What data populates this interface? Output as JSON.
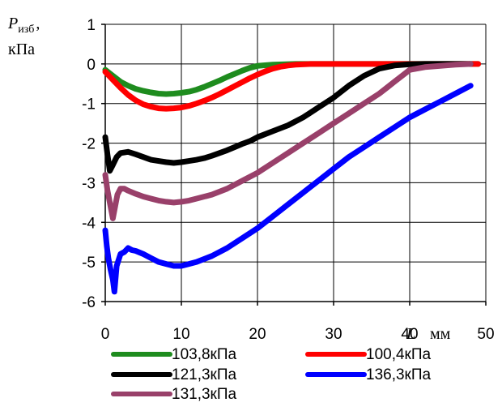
{
  "chart_data": {
    "type": "line",
    "ylabel": {
      "symbol": "P",
      "subscript": "изб",
      "suffix": ",",
      "unit": "кПа"
    },
    "xlabel": {
      "symbol": "L",
      "unit": "мм"
    },
    "xlim": [
      0,
      50
    ],
    "ylim": [
      -6,
      1
    ],
    "xticks": [
      "0",
      "10",
      "20",
      "30",
      "40",
      "50"
    ],
    "yticks": [
      "1",
      "0",
      "-1",
      "-2",
      "-3",
      "-4",
      "-5",
      "-6"
    ],
    "grid": true,
    "legend_position": "bottom",
    "series": [
      {
        "name": "103,8кПа",
        "color": "#1e8c1e",
        "x": [
          0,
          1,
          2,
          3,
          4,
          5,
          6,
          7,
          8,
          9,
          10,
          11,
          12,
          13,
          14,
          15,
          16,
          17,
          18,
          19,
          20,
          22,
          25,
          30,
          35,
          40,
          45,
          49
        ],
        "y": [
          -0.15,
          -0.3,
          -0.45,
          -0.55,
          -0.63,
          -0.68,
          -0.72,
          -0.75,
          -0.76,
          -0.75,
          -0.73,
          -0.7,
          -0.65,
          -0.58,
          -0.5,
          -0.42,
          -0.33,
          -0.25,
          -0.17,
          -0.1,
          -0.05,
          -0.02,
          0,
          0,
          0,
          0,
          0,
          0
        ]
      },
      {
        "name": "100,4кПа",
        "color": "#ff0000",
        "x": [
          0,
          1,
          2,
          3,
          4,
          5,
          6,
          7,
          8,
          9,
          10,
          11,
          12,
          13,
          14,
          15,
          16,
          17,
          18,
          19,
          20,
          21,
          22,
          23,
          24,
          25,
          27,
          30,
          35,
          40,
          45,
          49
        ],
        "y": [
          -0.2,
          -0.4,
          -0.6,
          -0.78,
          -0.92,
          -1.02,
          -1.08,
          -1.12,
          -1.13,
          -1.12,
          -1.1,
          -1.06,
          -1.0,
          -0.93,
          -0.85,
          -0.76,
          -0.66,
          -0.56,
          -0.46,
          -0.36,
          -0.27,
          -0.19,
          -0.12,
          -0.07,
          -0.04,
          -0.02,
          0,
          0,
          0,
          0,
          0,
          0
        ]
      },
      {
        "name": "121,3кПа",
        "color": "#000000",
        "x": [
          0,
          0.3,
          0.6,
          1,
          1.5,
          2,
          3,
          4,
          5,
          6,
          7,
          8,
          9,
          10,
          11,
          12,
          13,
          14,
          15,
          16,
          17,
          18,
          19,
          20,
          22,
          24,
          26,
          28,
          30,
          32,
          34,
          36,
          38,
          40,
          42,
          44,
          46,
          48
        ],
        "y": [
          -1.85,
          -2.3,
          -2.7,
          -2.55,
          -2.35,
          -2.25,
          -2.22,
          -2.28,
          -2.35,
          -2.42,
          -2.45,
          -2.48,
          -2.5,
          -2.48,
          -2.45,
          -2.42,
          -2.38,
          -2.32,
          -2.25,
          -2.18,
          -2.1,
          -2.02,
          -1.95,
          -1.85,
          -1.7,
          -1.55,
          -1.35,
          -1.1,
          -0.85,
          -0.55,
          -0.3,
          -0.12,
          -0.04,
          -0.01,
          0,
          0,
          0,
          0
        ]
      },
      {
        "name": "136,3кПа",
        "color": "#0000ff",
        "x": [
          0,
          0.2,
          0.4,
          0.7,
          1,
          1.2,
          1.5,
          2,
          2.5,
          3,
          3.5,
          4,
          5,
          6,
          7,
          8,
          9,
          10,
          11,
          12,
          14,
          16,
          18,
          20,
          22,
          24,
          26,
          28,
          30,
          32,
          34,
          36,
          38,
          40,
          42,
          44,
          46,
          48
        ],
        "y": [
          -4.2,
          -4.6,
          -4.9,
          -5.2,
          -5.45,
          -5.75,
          -5.1,
          -4.8,
          -4.75,
          -4.65,
          -4.7,
          -4.72,
          -4.8,
          -4.9,
          -5.0,
          -5.05,
          -5.1,
          -5.1,
          -5.05,
          -5.0,
          -4.85,
          -4.65,
          -4.4,
          -4.15,
          -3.85,
          -3.55,
          -3.25,
          -2.95,
          -2.65,
          -2.35,
          -2.1,
          -1.85,
          -1.6,
          -1.35,
          -1.15,
          -0.95,
          -0.75,
          -0.55
        ]
      },
      {
        "name": "131,3кПа",
        "color": "#99406a",
        "x": [
          0,
          0.3,
          0.6,
          1,
          1.3,
          1.6,
          2,
          2.5,
          3,
          4,
          5,
          6,
          7,
          8,
          9,
          10,
          11,
          12,
          14,
          16,
          18,
          20,
          22,
          24,
          26,
          28,
          30,
          32,
          34,
          36,
          37,
          38,
          39,
          40,
          42,
          44,
          46,
          48
        ],
        "y": [
          -2.8,
          -3.2,
          -3.5,
          -3.9,
          -3.6,
          -3.3,
          -3.15,
          -3.15,
          -3.2,
          -3.28,
          -3.35,
          -3.4,
          -3.45,
          -3.48,
          -3.5,
          -3.48,
          -3.45,
          -3.4,
          -3.3,
          -3.15,
          -2.95,
          -2.75,
          -2.5,
          -2.25,
          -2.0,
          -1.75,
          -1.5,
          -1.25,
          -1.0,
          -0.75,
          -0.6,
          -0.45,
          -0.3,
          -0.15,
          -0.08,
          -0.05,
          -0.02,
          0
        ]
      }
    ]
  }
}
